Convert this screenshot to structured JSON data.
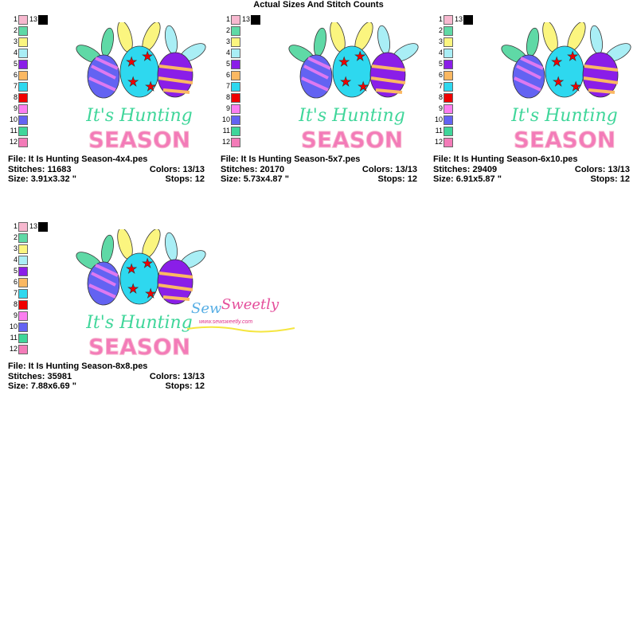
{
  "page_title": "Actual Sizes And Stitch Counts",
  "palette": [
    "#f7b8cf",
    "#5fd9a6",
    "#fbf57f",
    "#a9eef5",
    "#8a1ee8",
    "#fbb862",
    "#2ed8ef",
    "#f00000",
    "#fb7ef0",
    "#6363f2",
    "#3fd69a",
    "#f37bb8",
    "#000000"
  ],
  "design_text": {
    "line1": "It's Hunting",
    "line2": "SEASON"
  },
  "watermark": {
    "brand": "Sew Sweetly",
    "url": "www.sewsweetly.com"
  },
  "designs": [
    {
      "file": "File: It Is Hunting Season-4x4.pes",
      "stitches": "Stitches: 11683",
      "colors": "Colors: 13/13",
      "size": "Size: 3.91x3.32 \"",
      "stops": "Stops: 12"
    },
    {
      "file": "File: It Is Hunting Season-5x7.pes",
      "stitches": "Stitches: 20170",
      "colors": "Colors: 13/13",
      "size": "Size: 5.73x4.87 \"",
      "stops": "Stops: 12"
    },
    {
      "file": "File: It Is Hunting Season-6x10.pes",
      "stitches": "Stitches: 29409",
      "colors": "Colors: 13/13",
      "size": "Size: 6.91x5.87 \"",
      "stops": "Stops: 12"
    },
    {
      "file": "File: It Is Hunting Season-8x8.pes",
      "stitches": "Stitches: 35981",
      "colors": "Colors: 13/13",
      "size": "Size: 7.88x6.69 \"",
      "stops": "Stops: 12"
    }
  ]
}
